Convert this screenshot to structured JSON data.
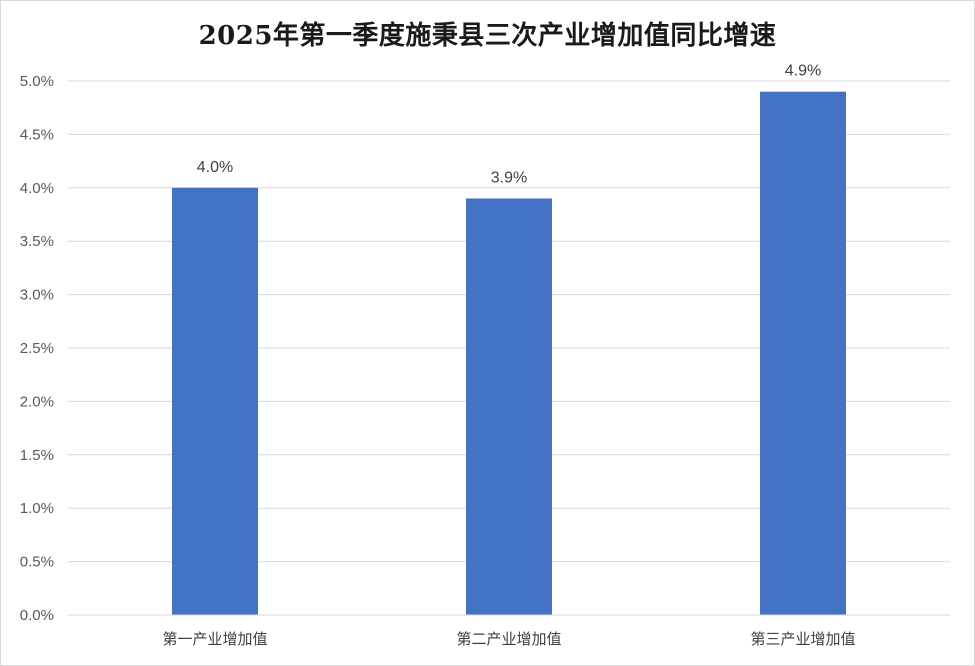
{
  "chart_data": {
    "type": "bar",
    "title": "2025年第一季度施秉县三次产业增加值同比增速",
    "categories": [
      "第一产业增加值",
      "第二产业增加值",
      "第三产业增加值"
    ],
    "values": [
      4.0,
      3.9,
      4.9
    ],
    "value_labels": [
      "4.0%",
      "3.9%",
      "4.9%"
    ],
    "yticks": [
      "0.0%",
      "0.5%",
      "1.0%",
      "1.5%",
      "2.0%",
      "2.5%",
      "3.0%",
      "3.5%",
      "4.0%",
      "4.5%",
      "5.0%"
    ],
    "ylim": [
      0,
      5
    ],
    "grid": true,
    "legend": "none",
    "bar_color": "#4472c4",
    "grid_color": "#d9d9d9"
  }
}
